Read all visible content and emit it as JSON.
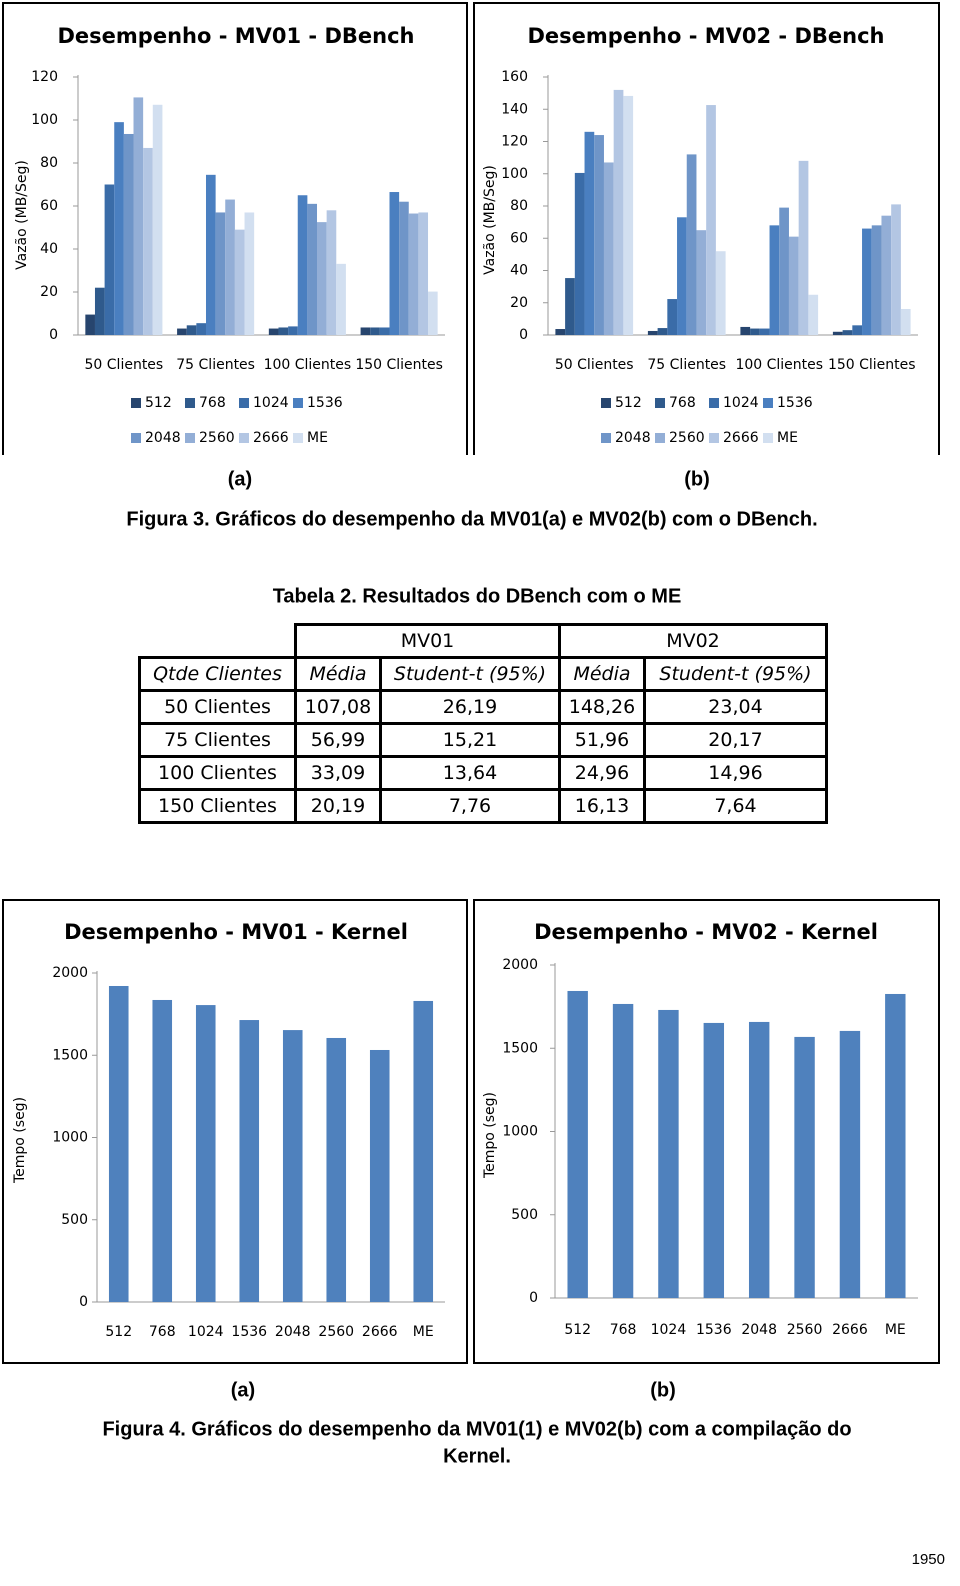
{
  "chart_data": [
    {
      "type": "bar",
      "title": "Desempenho - MV01 - DBench",
      "y_label": "Vazão (MB/Seg)",
      "categories": [
        "50 Clientes",
        "75 Clientes",
        "100 Clientes",
        "150 Clientes"
      ],
      "series": [
        {
          "name": "512",
          "color": "#27456e",
          "values": [
            9.5,
            3,
            3,
            3.5
          ]
        },
        {
          "name": "768",
          "color": "#2f5a8c",
          "values": [
            22,
            4.5,
            3.5,
            3.5
          ]
        },
        {
          "name": "1024",
          "color": "#3a6ca8",
          "values": [
            70,
            5.5,
            4,
            3.5
          ]
        },
        {
          "name": "1536",
          "color": "#4a7fc0",
          "values": [
            99,
            74.5,
            65,
            66.5
          ]
        },
        {
          "name": "2048",
          "color": "#6f95c8",
          "values": [
            93.5,
            57,
            61,
            62
          ]
        },
        {
          "name": "2560",
          "color": "#93aed6",
          "values": [
            110.5,
            63,
            52.5,
            56.5
          ]
        },
        {
          "name": "2666",
          "color": "#b3c6e3",
          "values": [
            87,
            49,
            58,
            57
          ]
        },
        {
          "name": "ME",
          "color": "#d2dff0",
          "values": [
            107.08,
            56.99,
            33.09,
            20.19
          ]
        }
      ],
      "ylim": [
        0,
        120
      ],
      "yticks": [
        0,
        20,
        40,
        60,
        80,
        100,
        120
      ]
    },
    {
      "type": "bar",
      "title": "Desempenho - MV02 - DBench",
      "y_label": "Vazão (MB/Seg)",
      "categories": [
        "50 Clientes",
        "75 Clientes",
        "100 Clientes",
        "150 Clientes"
      ],
      "series": [
        {
          "name": "512",
          "color": "#27456e",
          "values": [
            3.7,
            2.5,
            5,
            2
          ]
        },
        {
          "name": "768",
          "color": "#2f5a8c",
          "values": [
            35.3,
            4.3,
            4,
            3
          ]
        },
        {
          "name": "1024",
          "color": "#3a6ca8",
          "values": [
            100.5,
            22.3,
            4,
            6
          ]
        },
        {
          "name": "1536",
          "color": "#4a7fc0",
          "values": [
            126,
            73,
            68,
            66
          ]
        },
        {
          "name": "2048",
          "color": "#6f95c8",
          "values": [
            124,
            112,
            79,
            68
          ]
        },
        {
          "name": "2560",
          "color": "#93aed6",
          "values": [
            107,
            65,
            61,
            74
          ]
        },
        {
          "name": "2666",
          "color": "#b3c6e3",
          "values": [
            152,
            142.6,
            108,
            81
          ]
        },
        {
          "name": "ME",
          "color": "#d2dff0",
          "values": [
            148.26,
            51.96,
            24.96,
            16.13
          ]
        }
      ],
      "ylim": [
        0,
        160
      ],
      "yticks": [
        0,
        20,
        40,
        60,
        80,
        100,
        120,
        140,
        160
      ]
    },
    {
      "type": "bar",
      "title": "Desempenho - MV01 - Kernel",
      "y_label": "Tempo (seg)",
      "categories": [
        "512",
        "768",
        "1024",
        "1536",
        "2048",
        "2560",
        "2666",
        "ME"
      ],
      "values": [
        1921,
        1836,
        1805,
        1714,
        1653,
        1605,
        1532,
        1830
      ],
      "color": "#4f81bd",
      "ylim": [
        0,
        2000
      ],
      "yticks": [
        0,
        500,
        1000,
        1500,
        2000
      ]
    },
    {
      "type": "bar",
      "title": "Desempenho - MV02 - Kernel",
      "y_label": "Tempo (seg)",
      "categories": [
        "512",
        "768",
        "1024",
        "1536",
        "2048",
        "2560",
        "2666",
        "ME"
      ],
      "values": [
        1844,
        1766,
        1730,
        1652,
        1658,
        1568,
        1604,
        1826
      ],
      "color": "#4f81bd",
      "ylim": [
        0,
        2000
      ],
      "yticks": [
        0,
        500,
        1000,
        1500,
        2000
      ]
    }
  ],
  "figure3": {
    "labels": [
      "(a)",
      "(b)"
    ],
    "caption": "Figura 3. Gráficos do desempenho da MV01(a) e MV02(b) com o DBench."
  },
  "table": {
    "title": "Tabela 2. Resultados do DBench com o ME",
    "groups": [
      "MV01",
      "MV02"
    ],
    "columns": [
      "Qtde Clientes",
      "Média",
      "Student-t (95%)",
      "Média",
      "Student-t (95%)"
    ],
    "rows": [
      [
        "50 Clientes",
        "107,08",
        "26,19",
        "148,26",
        "23,04"
      ],
      [
        "75 Clientes",
        "56,99",
        "15,21",
        "51,96",
        "20,17"
      ],
      [
        "100 Clientes",
        "33,09",
        "13,64",
        "24,96",
        "14,96"
      ],
      [
        "150 Clientes",
        "20,19",
        "7,76",
        "16,13",
        "7,64"
      ]
    ]
  },
  "figure4": {
    "labels": [
      "(a)",
      "(b)"
    ],
    "caption_lines": [
      "Figura 4. Gráficos do desempenho da MV01(1) e MV02(b) com a compilação do",
      "Kernel."
    ]
  },
  "page_number": "1950"
}
